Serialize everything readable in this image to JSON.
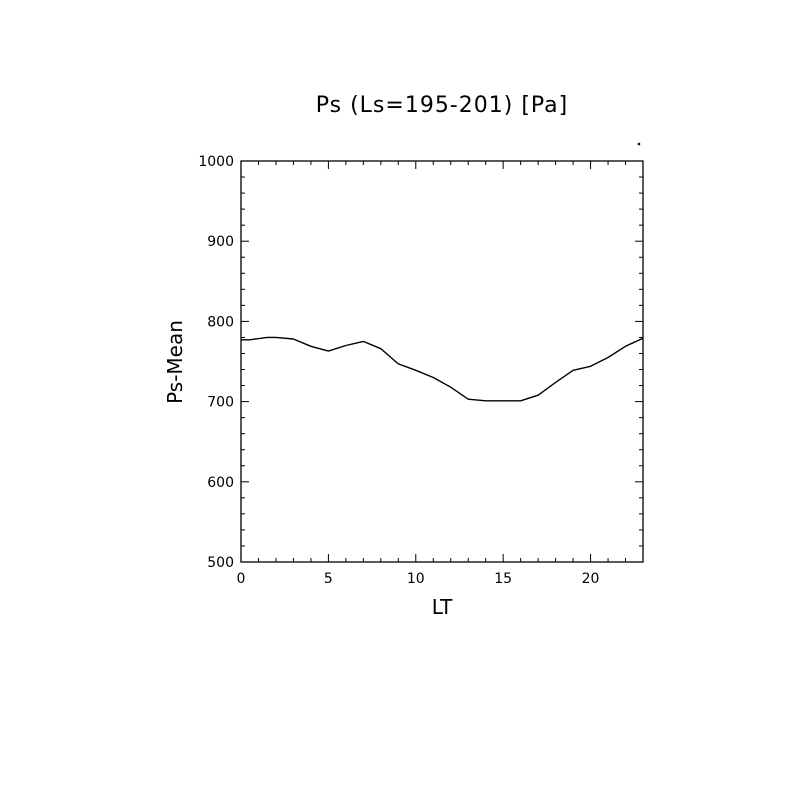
{
  "chart_data": {
    "type": "line",
    "title": "Ps (Ls=195-201) [Pa]",
    "xlabel": "LT",
    "ylabel": "Ps-Mean",
    "xlim": [
      0,
      23
    ],
    "ylim": [
      500,
      1000
    ],
    "x_ticks": [
      0,
      5,
      10,
      15,
      20
    ],
    "x_tick_labels": [
      "0",
      "5",
      "10",
      "15",
      "20"
    ],
    "y_ticks": [
      500,
      600,
      700,
      800,
      900,
      1000
    ],
    "y_tick_labels": [
      "500",
      "600",
      "700",
      "800",
      "900",
      "1000"
    ],
    "grid": false,
    "series": [
      {
        "x": [
          0,
          0.5,
          1.5,
          2,
          3,
          4,
          5,
          6,
          7,
          8,
          9,
          10,
          11,
          12,
          13,
          14,
          15,
          16,
          17,
          18,
          19,
          20,
          21,
          22,
          23
        ],
        "values": [
          777,
          777,
          780,
          780,
          778,
          769,
          763,
          770,
          775,
          766,
          747,
          739,
          730,
          718,
          703,
          701,
          701,
          701,
          708,
          724,
          739,
          744,
          755,
          769,
          779
        ]
      }
    ]
  }
}
